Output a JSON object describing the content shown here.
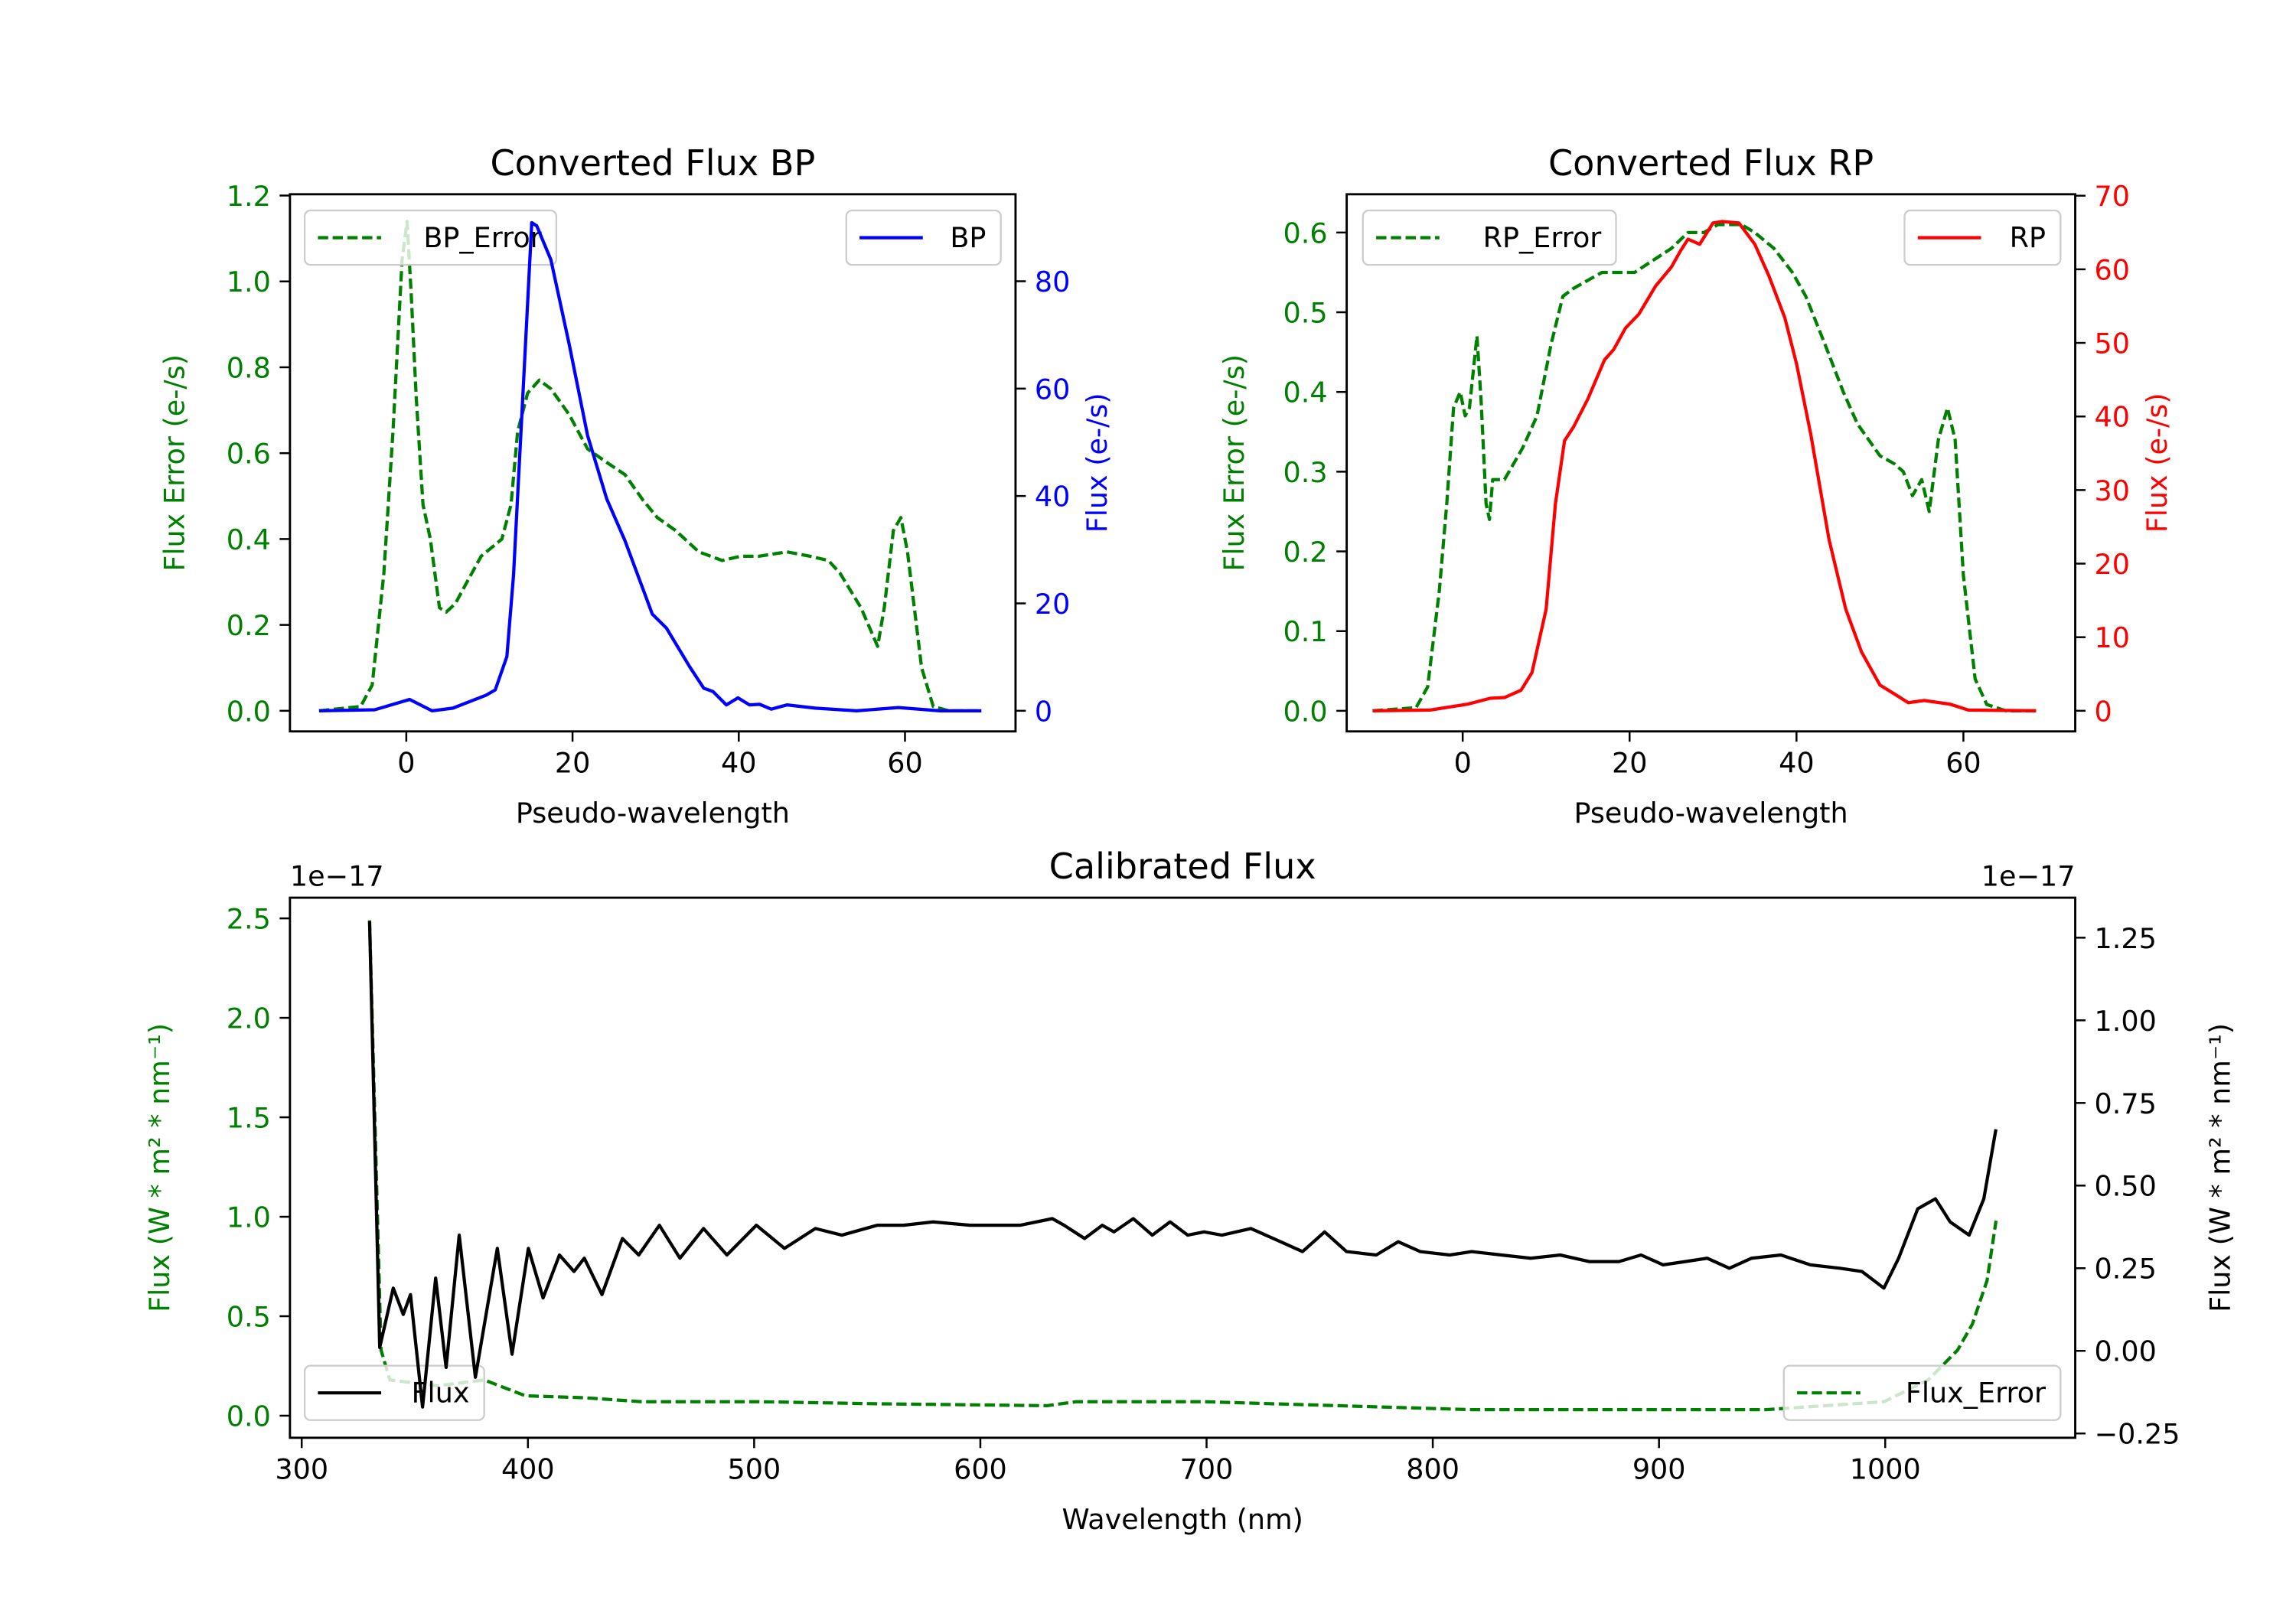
{
  "chart_data": [
    {
      "type": "line",
      "title": "Converted Flux BP",
      "xlabel": "Pseudo-wavelength",
      "ylabel_left": "Flux Error (e-/s)",
      "ylabel_right": "Flux (e-/s)",
      "color_left": "#008000",
      "color_right": "#0000ff",
      "xlim": [
        -14.0,
        73.3
      ],
      "ylim_left": [
        -0.048,
        1.203
      ],
      "ylim_right": [
        -3.84,
        96.2
      ],
      "xticks": [
        0,
        20,
        40,
        60
      ],
      "xtick_labels": [
        "0",
        "20",
        "40",
        "60"
      ],
      "yticks_left": [
        0,
        0.2,
        0.4,
        0.6,
        0.8,
        1.0,
        1.2
      ],
      "ytick_labels_left": [
        "0.0",
        "0.2",
        "0.4",
        "0.6",
        "0.8",
        "1.0",
        "1.2"
      ],
      "yticks_right": [
        0,
        20,
        40,
        60,
        80
      ],
      "ytick_labels_right": [
        "0",
        "20",
        "40",
        "60",
        "80"
      ],
      "grid": false,
      "legend": [
        {
          "series": 0,
          "placement": "upper-left"
        },
        {
          "series": 1,
          "placement": "upper-right"
        }
      ],
      "series": [
        {
          "name": "BP_Error",
          "axis": "left",
          "color": "#008000",
          "style": "dashed",
          "x": [
            -10.5,
            -5.5,
            -4.1,
            -2.7,
            -1.6,
            -0.5,
            0.1,
            0.6,
            1.2,
            2.0,
            2.9,
            4.0,
            4.8,
            5.9,
            7.3,
            9.0,
            11.5,
            12.6,
            13.4,
            14.6,
            16.0,
            17.4,
            19.6,
            21.8,
            24.0,
            26.3,
            28.5,
            30.2,
            32.4,
            35.2,
            38.0,
            40.2,
            42.4,
            45.8,
            48.6,
            50.8,
            52.2,
            54.7,
            56.7,
            57.5,
            58.6,
            59.5,
            60.3,
            62.0,
            63.4,
            65.3,
            69.2
          ],
          "y": [
            0,
            0.01,
            0.06,
            0.32,
            0.65,
            1.05,
            1.14,
            0.97,
            0.73,
            0.48,
            0.4,
            0.24,
            0.23,
            0.25,
            0.3,
            0.36,
            0.4,
            0.48,
            0.65,
            0.74,
            0.77,
            0.75,
            0.69,
            0.61,
            0.58,
            0.55,
            0.49,
            0.45,
            0.42,
            0.37,
            0.35,
            0.36,
            0.36,
            0.37,
            0.36,
            0.35,
            0.32,
            0.24,
            0.15,
            0.24,
            0.42,
            0.45,
            0.37,
            0.1,
            0.01,
            0,
            0
          ]
        },
        {
          "name": "BP",
          "axis": "right",
          "color": "#0000ff",
          "style": "solid",
          "x": [
            -10.5,
            -3.8,
            0.4,
            3.1,
            5.6,
            9.6,
            10.7,
            12.1,
            12.9,
            14.0,
            15.1,
            15.7,
            17.4,
            19.6,
            21.8,
            24.1,
            26.3,
            29.6,
            31.3,
            34.1,
            35.8,
            36.9,
            38.5,
            39.9,
            41.3,
            42.5,
            43.9,
            45.8,
            49.2,
            54.2,
            59.2,
            64.2,
            69.2
          ],
          "y": [
            0,
            0.2,
            2.1,
            0,
            0.5,
            2.9,
            3.9,
            10.1,
            25.2,
            57.9,
            90.9,
            90.3,
            84.0,
            68.3,
            51.3,
            39.5,
            31.7,
            18.0,
            15.4,
            8.2,
            4.2,
            3.6,
            1.1,
            2.4,
            1.1,
            1.2,
            0.3,
            1.1,
            0.5,
            0,
            0.6,
            0,
            0
          ]
        }
      ]
    },
    {
      "type": "line",
      "title": "Converted Flux RP",
      "xlabel": "Pseudo-wavelength",
      "ylabel_left": "Flux Error (e-/s)",
      "ylabel_right": "Flux (e-/s)",
      "color_left": "#008000",
      "color_right": "#ff0000",
      "xlim": [
        -13.9,
        73.4
      ],
      "ylim_left": [
        -0.0258,
        0.648
      ],
      "ylim_right": [
        -2.8,
        70.2
      ],
      "xticks": [
        0,
        20,
        40,
        60
      ],
      "xtick_labels": [
        "0",
        "20",
        "40",
        "60"
      ],
      "yticks_left": [
        0,
        0.1,
        0.2,
        0.3,
        0.4,
        0.5,
        0.6
      ],
      "ytick_labels_left": [
        "0.0",
        "0.1",
        "0.2",
        "0.3",
        "0.4",
        "0.5",
        "0.6"
      ],
      "yticks_right": [
        0,
        10,
        20,
        30,
        40,
        50,
        60,
        70
      ],
      "ytick_labels_right": [
        "0",
        "10",
        "20",
        "30",
        "40",
        "50",
        "60",
        "70"
      ],
      "grid": false,
      "legend": [
        {
          "series": 0,
          "placement": "upper-left"
        },
        {
          "series": 1,
          "placement": "upper-right"
        }
      ],
      "series": [
        {
          "name": "RP_Error",
          "axis": "left",
          "color": "#008000",
          "style": "dashed",
          "x": [
            -10.8,
            -5.6,
            -4.2,
            -2.8,
            -1.9,
            -1.1,
            -0.3,
            0.3,
            0.8,
            1.7,
            2.2,
            2.8,
            3.2,
            3.6,
            5.0,
            7.2,
            8.9,
            10.6,
            12.0,
            13.3,
            16.7,
            20.6,
            25.0,
            27.0,
            28.9,
            30.6,
            33.4,
            35.0,
            37.3,
            39.5,
            41.1,
            43.4,
            45.6,
            47.3,
            50.0,
            51.7,
            52.8,
            53.9,
            55.0,
            55.9,
            57.0,
            58.1,
            59.0,
            60.0,
            61.4,
            62.8,
            65.1,
            68.7
          ],
          "y": [
            0,
            0.004,
            0.03,
            0.15,
            0.26,
            0.38,
            0.4,
            0.37,
            0.38,
            0.47,
            0.39,
            0.26,
            0.24,
            0.29,
            0.29,
            0.33,
            0.37,
            0.46,
            0.52,
            0.53,
            0.55,
            0.55,
            0.58,
            0.6,
            0.6,
            0.61,
            0.61,
            0.6,
            0.58,
            0.55,
            0.52,
            0.46,
            0.4,
            0.36,
            0.32,
            0.31,
            0.3,
            0.27,
            0.29,
            0.25,
            0.34,
            0.38,
            0.34,
            0.17,
            0.04,
            0.008,
            0,
            0
          ]
        },
        {
          "name": "RP",
          "axis": "right",
          "color": "#ff0000",
          "style": "solid",
          "x": [
            -10.8,
            -3.9,
            0.6,
            3.3,
            5.0,
            7.0,
            8.3,
            10.0,
            11.1,
            12.2,
            13.3,
            15.0,
            17.0,
            18.1,
            19.5,
            21.1,
            23.1,
            25.0,
            26.1,
            27.0,
            28.4,
            30.0,
            31.1,
            33.1,
            35.0,
            36.7,
            38.6,
            40.0,
            41.7,
            43.9,
            45.9,
            47.8,
            50.0,
            51.7,
            53.4,
            55.3,
            58.4,
            60.6,
            68.7
          ],
          "y": [
            0,
            0.1,
            0.9,
            1.7,
            1.8,
            2.8,
            5.2,
            13.8,
            28.1,
            36.7,
            38.6,
            42.4,
            47.7,
            49.1,
            52.0,
            53.9,
            57.7,
            60.3,
            62.5,
            64.1,
            63.4,
            66.3,
            66.5,
            66.3,
            63.4,
            59.1,
            53.4,
            47.2,
            37.6,
            23.3,
            13.8,
            8.0,
            3.5,
            2.3,
            1.1,
            1.4,
            0.9,
            0.1,
            0
          ]
        }
      ]
    },
    {
      "type": "line",
      "title": "Calibrated Flux",
      "xlabel": "Wavelength (nm)",
      "ylabel_left": "Flux (W * m² * nm⁻¹)",
      "ylabel_right": "Flux (W * m² * nm⁻¹)",
      "offset_left": "1e−17",
      "offset_right": "1e−17",
      "color_left": "#008000",
      "color_right": "#000000",
      "xlim": [
        294.8,
        1084
      ],
      "ylim_left": [
        -0.111,
        2.604
      ],
      "ylim_right": [
        -0.263,
        1.371
      ],
      "xticks": [
        300,
        400,
        500,
        600,
        700,
        800,
        900,
        1000
      ],
      "xtick_labels": [
        "300",
        "400",
        "500",
        "600",
        "700",
        "800",
        "900",
        "1000"
      ],
      "yticks_left": [
        0,
        0.5,
        1.0,
        1.5,
        2.0,
        2.5
      ],
      "ytick_labels_left": [
        "0.0",
        "0.5",
        "1.0",
        "1.5",
        "2.0",
        "2.5"
      ],
      "yticks_right": [
        -0.25,
        0,
        0.25,
        0.5,
        0.75,
        1.0,
        1.25
      ],
      "ytick_labels_right": [
        "−0.25",
        "0.00",
        "0.25",
        "0.50",
        "0.75",
        "1.00",
        "1.25"
      ],
      "grid": false,
      "legend": [
        {
          "series": 1,
          "placement": "lower-left"
        },
        {
          "series": 0,
          "placement": "lower-right"
        }
      ],
      "series": [
        {
          "name": "Flux_Error",
          "axis": "left",
          "color": "#008000",
          "style": "dashed",
          "x": [
            330,
            335.1,
            339,
            359.9,
            380.7,
            398.9,
            424.9,
            450.3,
            502.3,
            554.4,
            629.4,
            642.4,
            698.9,
            817.2,
            947.4,
            999.4,
            1019,
            1032,
            1038.5,
            1045,
            1049
          ],
          "y": [
            2.49,
            0.33,
            0.18,
            0.15,
            0.18,
            0.1,
            0.09,
            0.07,
            0.07,
            0.06,
            0.05,
            0.07,
            0.07,
            0.03,
            0.03,
            0.07,
            0.18,
            0.33,
            0.46,
            0.68,
            0.98
          ]
        },
        {
          "name": "Flux",
          "axis": "right",
          "color": "#000000",
          "style": "solid",
          "x": [
            330,
            334.5,
            340.5,
            344.9,
            348.1,
            353.4,
            359.2,
            363.8,
            369.6,
            376.8,
            386.5,
            393,
            400.2,
            406.7,
            413.9,
            420.4,
            424.9,
            432.7,
            441.8,
            449,
            458.1,
            467.2,
            477.6,
            488,
            501,
            513.4,
            527.1,
            538.8,
            554.4,
            566.1,
            579.1,
            595.4,
            617.5,
            631.8,
            637,
            646.1,
            653.9,
            659.1,
            667.6,
            676,
            683.9,
            691.7,
            698.9,
            706.8,
            719.6,
            732.7,
            742.4,
            752.2,
            761.9,
            775,
            784.7,
            794.5,
            807.5,
            817.2,
            830.3,
            843.3,
            856.3,
            869.3,
            882.3,
            892.1,
            901.8,
            911.6,
            921.3,
            931.1,
            940.9,
            953.9,
            966.9,
            979.9,
            989.7,
            999.4,
            1005.9,
            1014.4,
            1022.2,
            1028.7,
            1037.1,
            1043.6,
            1048.9
          ],
          "y": [
            1.3,
            0.01,
            0.19,
            0.11,
            0.17,
            -0.17,
            0.22,
            -0.05,
            0.35,
            -0.08,
            0.31,
            -0.01,
            0.31,
            0.16,
            0.29,
            0.24,
            0.28,
            0.17,
            0.34,
            0.29,
            0.38,
            0.28,
            0.37,
            0.29,
            0.38,
            0.31,
            0.37,
            0.35,
            0.38,
            0.38,
            0.39,
            0.38,
            0.38,
            0.4,
            0.38,
            0.34,
            0.38,
            0.36,
            0.4,
            0.35,
            0.39,
            0.35,
            0.36,
            0.35,
            0.37,
            0.33,
            0.3,
            0.36,
            0.3,
            0.29,
            0.33,
            0.3,
            0.29,
            0.3,
            0.29,
            0.28,
            0.29,
            0.27,
            0.27,
            0.29,
            0.26,
            0.27,
            0.28,
            0.25,
            0.28,
            0.29,
            0.26,
            0.25,
            0.24,
            0.19,
            0.28,
            0.43,
            0.46,
            0.39,
            0.35,
            0.46,
            0.67
          ]
        }
      ]
    }
  ]
}
